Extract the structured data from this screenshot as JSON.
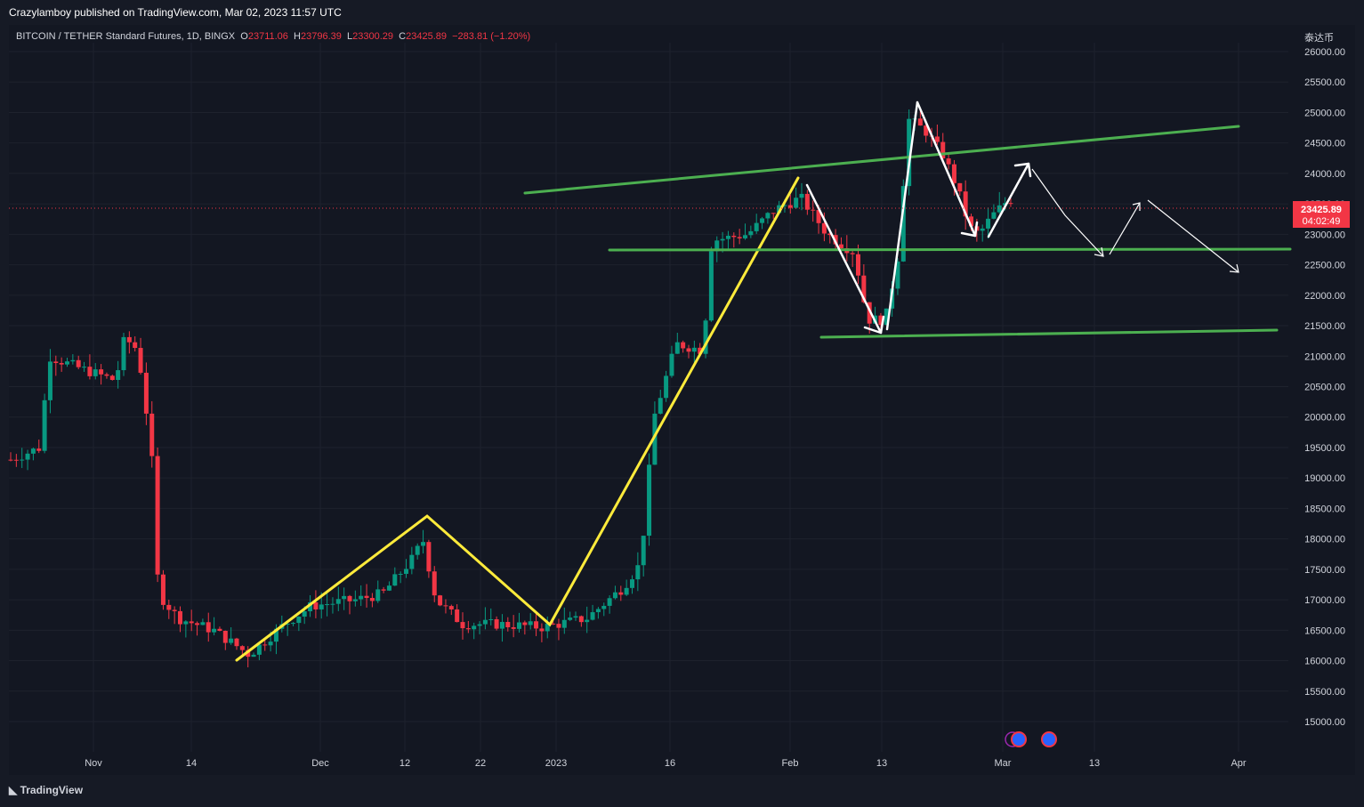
{
  "header": {
    "published": "Crazylamboy published on TradingView.com, Mar 02, 2023 11:57 UTC"
  },
  "legend": {
    "symbol": "BITCOIN / TETHER Standard Futures, 1D, BINGX",
    "o_label": "O",
    "o": "23711.06",
    "h_label": "H",
    "h": "23796.39",
    "l_label": "L",
    "l": "23300.29",
    "c_label": "C",
    "c": "23425.89",
    "change": "−283.81 (−1.20%)"
  },
  "scale_label": "泰达币",
  "price_tag": {
    "price": "23425.89",
    "countdown": "04:02:49"
  },
  "footer": {
    "brand": "TradingView"
  },
  "chart_data": {
    "type": "candlestick",
    "y_ticks": [
      "26000.00",
      "25500.00",
      "25000.00",
      "24500.00",
      "24000.00",
      "23500.00",
      "23000.00",
      "22500.00",
      "22000.00",
      "21500.00",
      "21000.00",
      "20500.00",
      "20000.00",
      "19500.00",
      "19000.00",
      "18500.00",
      "18000.00",
      "17500.00",
      "17000.00",
      "16500.00",
      "16000.00",
      "15500.00",
      "15000.00"
    ],
    "x_ticks": [
      {
        "label": "Nov",
        "x": 105
      },
      {
        "label": "14",
        "x": 215
      },
      {
        "label": "Dec",
        "x": 360
      },
      {
        "label": "12",
        "x": 455
      },
      {
        "label": "22",
        "x": 540
      },
      {
        "label": "2023",
        "x": 625
      },
      {
        "label": "16",
        "x": 753
      },
      {
        "label": "Feb",
        "x": 888
      },
      {
        "label": "13",
        "x": 991
      },
      {
        "label": "Mar",
        "x": 1127
      },
      {
        "label": "13",
        "x": 1230
      },
      {
        "label": "Apr",
        "x": 1392
      }
    ],
    "current_price": 23425.89,
    "colors": {
      "up": "#089981",
      "down": "#f23645",
      "support": "#4caf50",
      "zigzag": "#ffeb3b",
      "arrows": "#ffffff"
    }
  }
}
